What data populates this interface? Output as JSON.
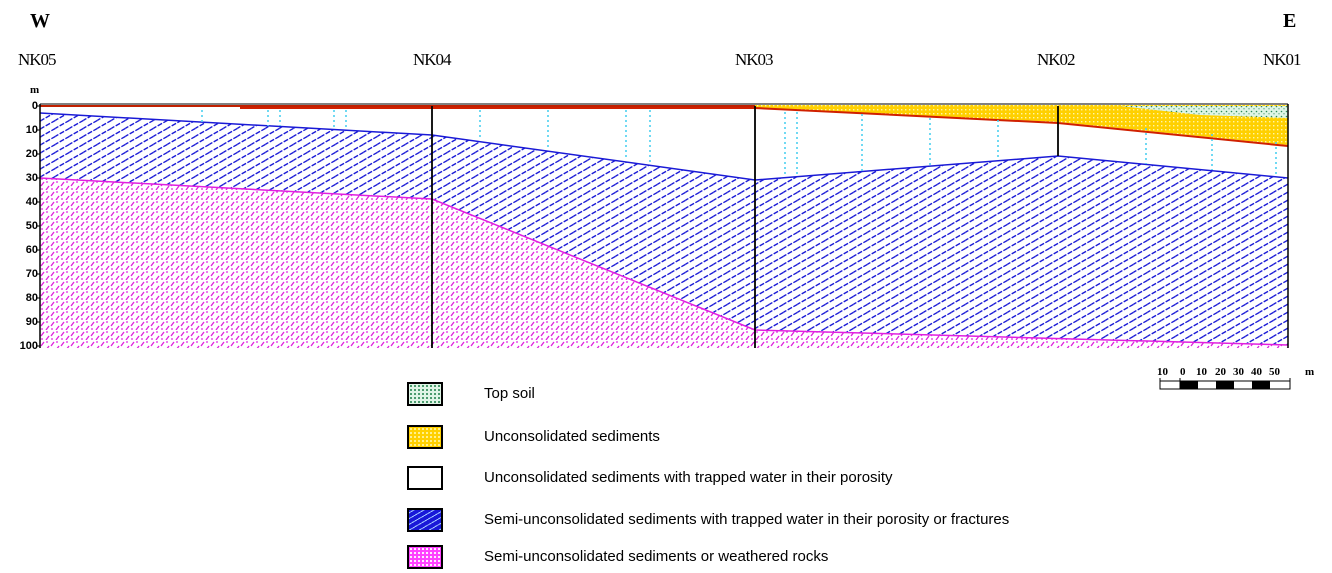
{
  "orientation": {
    "west": "W",
    "east": "E"
  },
  "depth_axis": {
    "unit": "m",
    "ticks": [
      "0",
      "10",
      "20",
      "30",
      "40",
      "50",
      "60",
      "70",
      "80",
      "90",
      "100"
    ]
  },
  "wells": [
    "NK05",
    "NK04",
    "NK03",
    "NK02",
    "NK01"
  ],
  "legend": [
    {
      "label": "Top soil",
      "color": "#c9f0d8",
      "dots": "#2e8b57"
    },
    {
      "label": "Unconsolidated sediments",
      "color": "#ffd21f",
      "dots": "#f5f5a0"
    },
    {
      "label": "Unconsolidated sediments with trapped water in their porosity",
      "color": "#ffffff",
      "dots": ""
    },
    {
      "label": "Semi-unconsolidated sediments with trapped water in their porosity or fractures",
      "color": "#1818d8",
      "dots": "#ffffff"
    },
    {
      "label": "Semi-unconsolidated sediments or weathered rocks",
      "color": "#ff40ff",
      "dots": "#ffffff"
    }
  ],
  "scale_bar": {
    "ticks": [
      "10",
      "0",
      "10",
      "20",
      "30",
      "40",
      "50"
    ],
    "unit": "m"
  },
  "colors": {
    "blue_layer": "#1a1ad6",
    "pink_layer": "#e020e0",
    "yellow_layer": "#ffd000",
    "water_marks": "#4dd0f0",
    "surface_line": "#d02000"
  }
}
